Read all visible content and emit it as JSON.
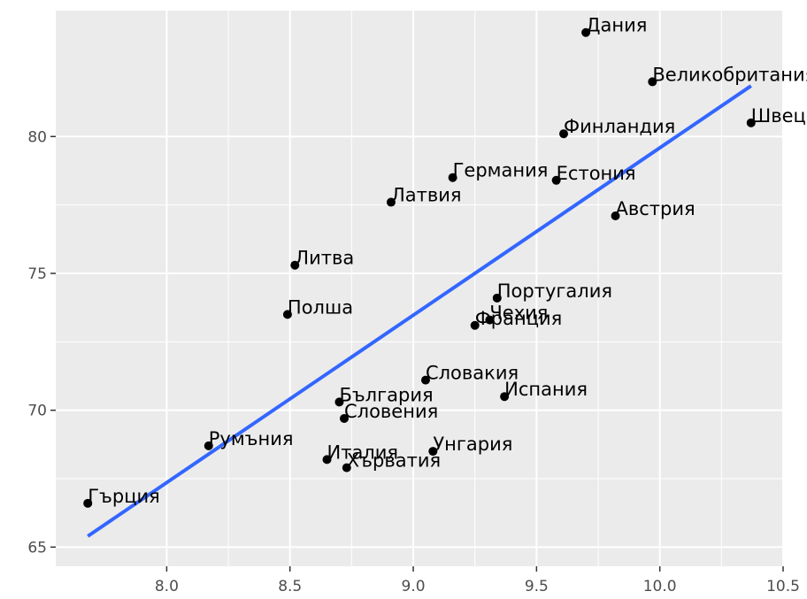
{
  "chart_data": {
    "type": "scatter",
    "title": "",
    "xlabel": "",
    "ylabel": "",
    "xlim": [
      7.55,
      10.5
    ],
    "ylim": [
      64.3,
      84.6
    ],
    "x_ticks": [
      8.0,
      8.5,
      9.0,
      9.5,
      10.0,
      10.5
    ],
    "x_tick_labels": [
      "8.0",
      "8.5",
      "9.0",
      "9.5",
      "10.0",
      "10.5"
    ],
    "y_ticks": [
      65,
      70,
      75,
      80
    ],
    "y_tick_labels": [
      "65",
      "70",
      "75",
      "80"
    ],
    "grid": true,
    "colors": {
      "panel": "#ebebeb",
      "grid": "#ffffff",
      "points": "#000000",
      "fit_line": "#3366ff"
    },
    "fit_line": {
      "type": "linear",
      "x": [
        7.68,
        10.37
      ],
      "y": [
        65.4,
        81.85
      ]
    },
    "points": [
      {
        "label": "Дания",
        "x": 9.7,
        "y": 83.8
      },
      {
        "label": "Великобритания",
        "x": 9.97,
        "y": 82.0
      },
      {
        "label": "Швеция",
        "x": 10.37,
        "y": 80.5
      },
      {
        "label": "Финландия",
        "x": 9.61,
        "y": 80.1
      },
      {
        "label": "Германия",
        "x": 9.16,
        "y": 78.5
      },
      {
        "label": "Естония",
        "x": 9.58,
        "y": 78.4
      },
      {
        "label": "Латвия",
        "x": 8.91,
        "y": 77.6
      },
      {
        "label": "Австрия",
        "x": 9.82,
        "y": 77.1
      },
      {
        "label": "Литва",
        "x": 8.52,
        "y": 75.3
      },
      {
        "label": "Португалия",
        "x": 9.34,
        "y": 74.1
      },
      {
        "label": "Полша",
        "x": 8.49,
        "y": 73.5
      },
      {
        "label": "Чехия",
        "x": 9.31,
        "y": 73.3
      },
      {
        "label": "Франция",
        "x": 9.25,
        "y": 73.1
      },
      {
        "label": "Словакия",
        "x": 9.05,
        "y": 71.1
      },
      {
        "label": "Испания",
        "x": 9.37,
        "y": 70.5
      },
      {
        "label": "България",
        "x": 8.7,
        "y": 70.3
      },
      {
        "label": "Словения",
        "x": 8.72,
        "y": 69.7
      },
      {
        "label": "Румъния",
        "x": 8.17,
        "y": 68.7
      },
      {
        "label": "Унгария",
        "x": 9.08,
        "y": 68.5
      },
      {
        "label": "Италия",
        "x": 8.65,
        "y": 68.2
      },
      {
        "label": "Хърватия",
        "x": 8.73,
        "y": 67.9
      },
      {
        "label": "Гърция",
        "x": 7.68,
        "y": 66.6
      }
    ]
  }
}
